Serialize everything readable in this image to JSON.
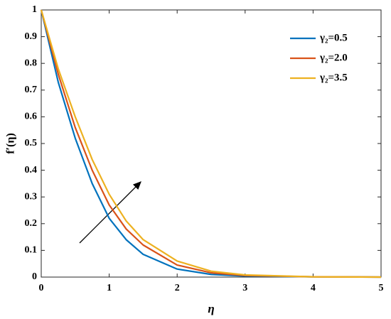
{
  "chart_data": {
    "type": "line",
    "xlabel": "η",
    "ylabel": "f′(η)",
    "x": [
      0,
      0.25,
      0.5,
      0.75,
      1,
      1.25,
      1.5,
      2,
      2.5,
      3,
      4,
      5
    ],
    "series": [
      {
        "name": "γ₂=0.5",
        "color": "#0072bd",
        "values": [
          1,
          0.73,
          0.52,
          0.35,
          0.22,
          0.14,
          0.085,
          0.03,
          0.01,
          0.004,
          0.001,
          0
        ]
      },
      {
        "name": "γ₂=2.0",
        "color": "#d95319",
        "values": [
          1,
          0.76,
          0.56,
          0.4,
          0.27,
          0.18,
          0.12,
          0.045,
          0.016,
          0.006,
          0.001,
          0
        ]
      },
      {
        "name": "γ₂=3.5",
        "color": "#edb120",
        "values": [
          1,
          0.78,
          0.6,
          0.44,
          0.31,
          0.21,
          0.14,
          0.06,
          0.022,
          0.008,
          0.001,
          0
        ]
      }
    ],
    "xlim": [
      0,
      5
    ],
    "xticks": [
      0,
      1,
      2,
      3,
      4,
      5
    ],
    "ylim": [
      0,
      1
    ],
    "yticks": [
      0,
      0.1,
      0.2,
      0.3,
      0.4,
      0.5,
      0.6,
      0.7,
      0.8,
      0.9,
      1
    ],
    "legend": "upper right"
  }
}
